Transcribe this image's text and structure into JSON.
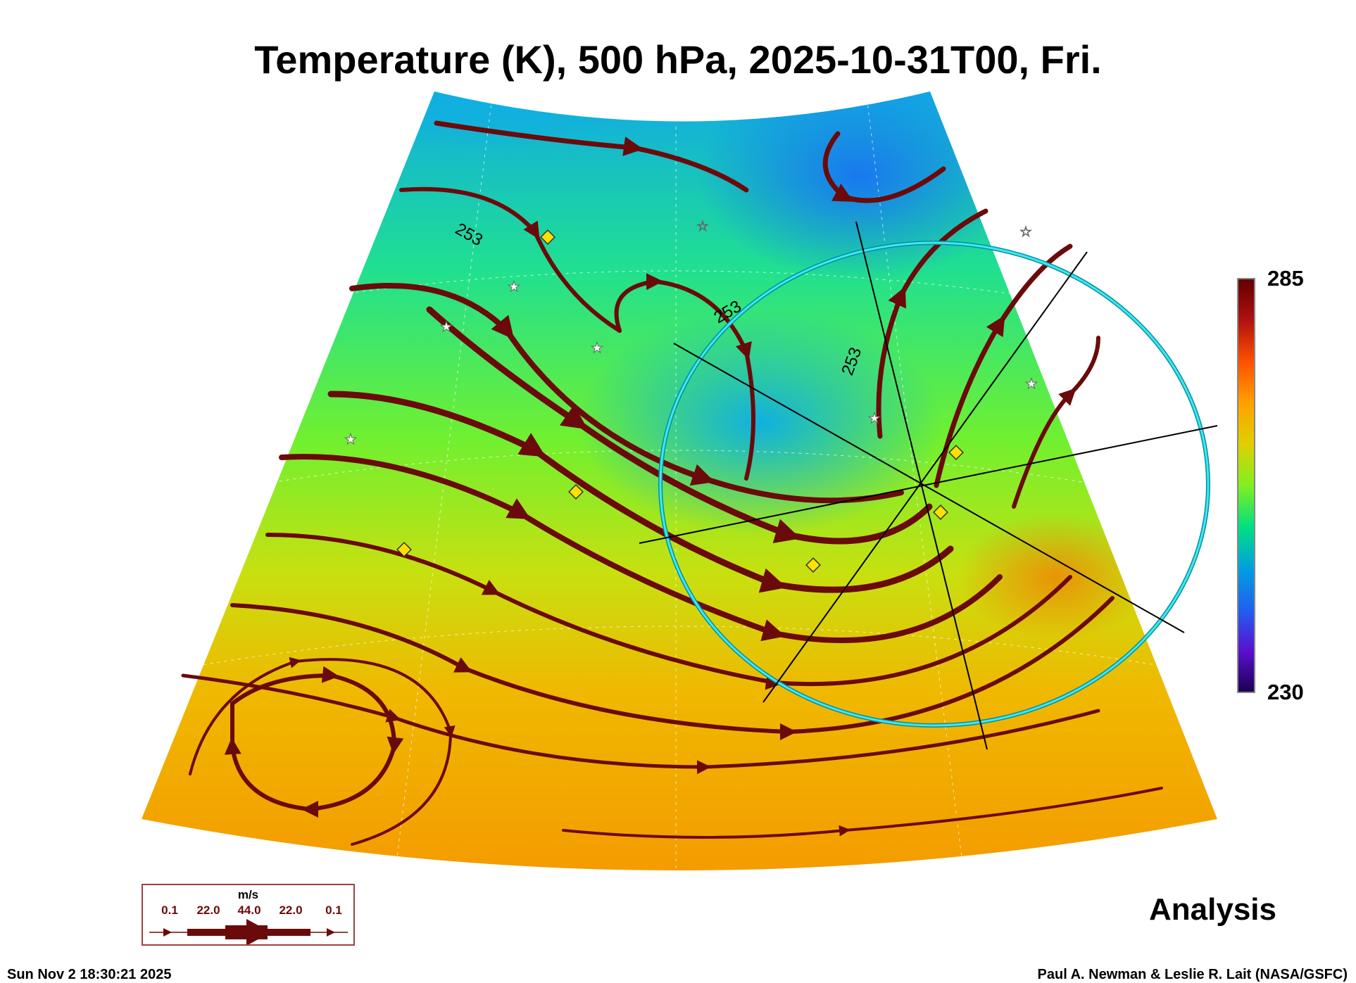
{
  "title": "Temperature (K), 500 hPa, 2025-10-31T00, Fri.",
  "chart_data": {
    "type": "heatmap",
    "title": "Temperature (K), 500 hPa, 2025-10-31T00, Fri.",
    "variable": "Temperature (K)",
    "level": "500 hPa",
    "colorbar": {
      "min": 230,
      "max": 285,
      "min_label": "230",
      "max_label": "285",
      "colors": [
        "#1a0050",
        "#5a10d0",
        "#2060f0",
        "#00a0e0",
        "#00e080",
        "#80f020",
        "#e0d000",
        "#ffa000",
        "#ff5000",
        "#b01010",
        "#600000"
      ]
    },
    "contour_labels": [
      "253",
      "253",
      "253"
    ],
    "overlay": "wind streamlines",
    "wind_legend": {
      "unit": "m/s",
      "values": [
        "0.1",
        "22.0",
        "44.0",
        "22.0",
        "0.1"
      ]
    },
    "product": "Analysis"
  },
  "timestamp": "Sun Nov  2 18:30:21 2025",
  "credit": "Paul A. Newman & Leslie R. Lait (NASA/GSFC)",
  "colors": {
    "streamline": "#6b0a0a",
    "circle": "#20c8d8",
    "marker_diamond": "#ffe000"
  }
}
